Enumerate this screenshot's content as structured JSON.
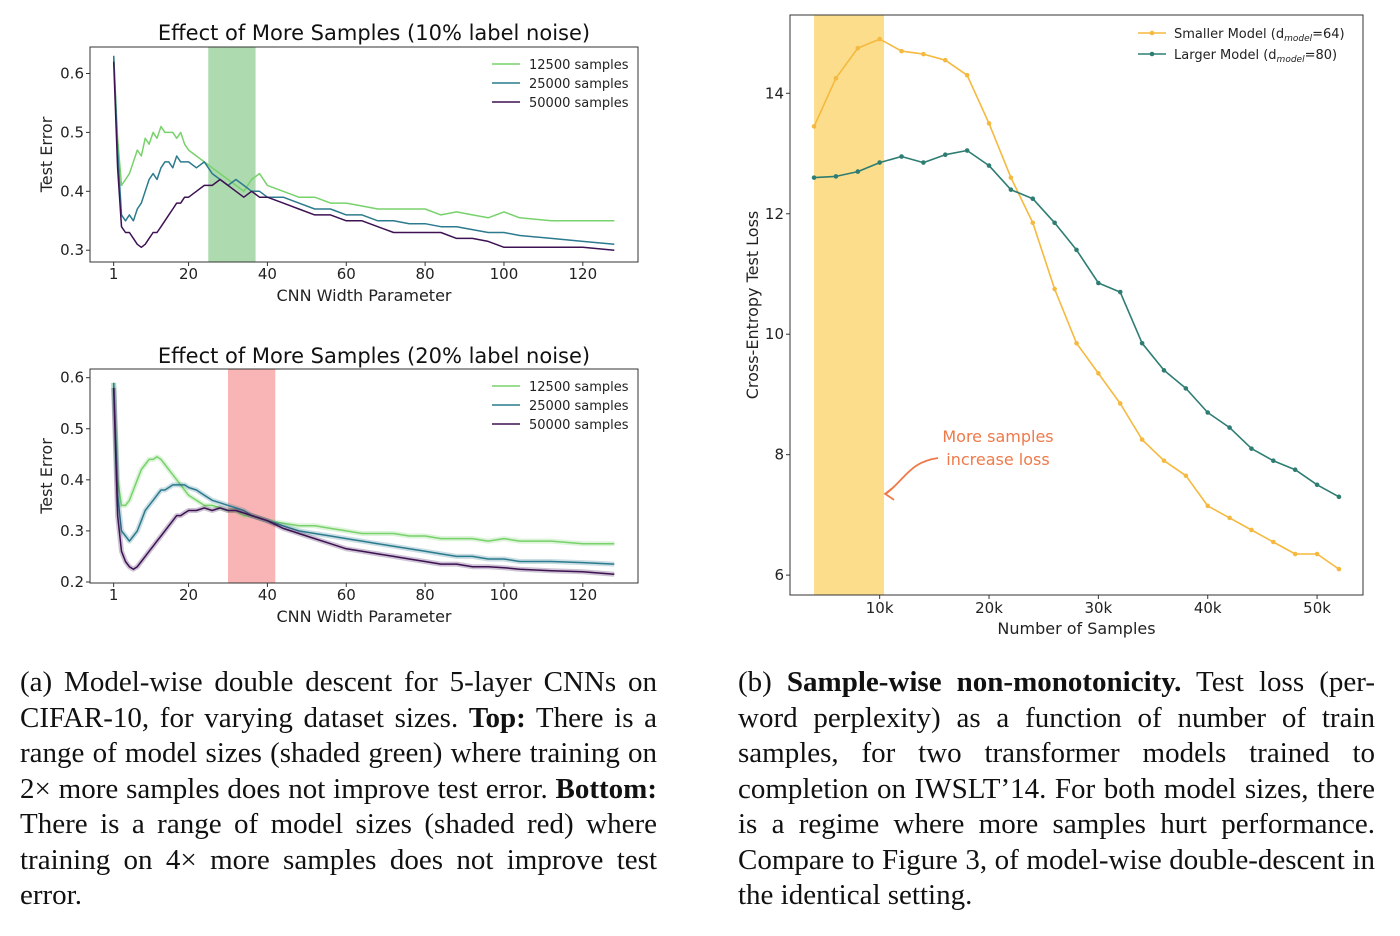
{
  "colors": {
    "light_green": "#78d26b",
    "teal": "#2c7a8e",
    "purple": "#3d1152",
    "orange": "#f5b93f",
    "dark_teal": "#2e7d73",
    "green_band": "#9fd3a0",
    "red_band": "#f8a8a8",
    "yellow_band": "#fbd97e",
    "annotation": "#ee7a4a"
  },
  "chart_data": [
    {
      "id": "top",
      "type": "line",
      "title": "Effect of More Samples (10% label noise)",
      "xlabel": "CNN Width Parameter",
      "ylabel": "Test Error",
      "xlim": [
        -5,
        134
      ],
      "ylim": [
        0.28,
        0.645
      ],
      "xticks": [
        1,
        20,
        40,
        60,
        80,
        100,
        120
      ],
      "yticks": [
        0.3,
        0.4,
        0.5,
        0.6
      ],
      "ytick_labels": [
        "0.3",
        "0.4",
        "0.5",
        "0.6"
      ],
      "legend_position": "top-right",
      "shaded_region": {
        "x": [
          25,
          37
        ],
        "color": "green"
      },
      "series": [
        {
          "name": "12500 samples",
          "color": "light_green",
          "x": [
            1,
            2,
            3,
            4,
            5,
            6,
            7,
            8,
            9,
            10,
            11,
            12,
            13,
            14,
            15,
            16,
            17,
            18,
            19,
            20,
            22,
            24,
            26,
            28,
            30,
            32,
            34,
            36,
            38,
            40,
            44,
            48,
            52,
            56,
            60,
            64,
            68,
            72,
            76,
            80,
            84,
            88,
            92,
            96,
            100,
            104,
            112,
            120,
            128
          ],
          "y": [
            0.63,
            0.49,
            0.41,
            0.42,
            0.43,
            0.45,
            0.47,
            0.46,
            0.49,
            0.48,
            0.5,
            0.49,
            0.51,
            0.5,
            0.5,
            0.5,
            0.49,
            0.5,
            0.48,
            0.47,
            0.46,
            0.45,
            0.44,
            0.43,
            0.42,
            0.41,
            0.4,
            0.42,
            0.43,
            0.41,
            0.4,
            0.39,
            0.39,
            0.38,
            0.38,
            0.375,
            0.37,
            0.37,
            0.37,
            0.37,
            0.36,
            0.365,
            0.36,
            0.355,
            0.365,
            0.355,
            0.35,
            0.35,
            0.35
          ]
        },
        {
          "name": "25000 samples",
          "color": "teal",
          "x": [
            1,
            2,
            3,
            4,
            5,
            6,
            7,
            8,
            9,
            10,
            11,
            12,
            13,
            14,
            15,
            16,
            17,
            18,
            19,
            20,
            22,
            24,
            26,
            28,
            30,
            32,
            34,
            36,
            38,
            40,
            44,
            48,
            52,
            56,
            60,
            64,
            68,
            72,
            76,
            80,
            84,
            88,
            92,
            96,
            100,
            104,
            112,
            120,
            128
          ],
          "y": [
            0.63,
            0.47,
            0.36,
            0.35,
            0.36,
            0.35,
            0.37,
            0.38,
            0.4,
            0.42,
            0.43,
            0.42,
            0.44,
            0.45,
            0.45,
            0.44,
            0.46,
            0.45,
            0.45,
            0.45,
            0.44,
            0.45,
            0.43,
            0.42,
            0.41,
            0.42,
            0.41,
            0.4,
            0.4,
            0.39,
            0.39,
            0.38,
            0.37,
            0.37,
            0.36,
            0.36,
            0.35,
            0.35,
            0.345,
            0.345,
            0.34,
            0.34,
            0.335,
            0.33,
            0.33,
            0.325,
            0.32,
            0.315,
            0.31
          ]
        },
        {
          "name": "50000 samples",
          "color": "purple",
          "x": [
            1,
            2,
            3,
            4,
            5,
            6,
            7,
            8,
            9,
            10,
            11,
            12,
            13,
            14,
            15,
            16,
            17,
            18,
            19,
            20,
            22,
            24,
            26,
            28,
            30,
            32,
            34,
            36,
            38,
            40,
            44,
            48,
            52,
            56,
            60,
            64,
            68,
            72,
            76,
            80,
            84,
            88,
            92,
            96,
            100,
            104,
            112,
            120,
            128
          ],
          "y": [
            0.62,
            0.44,
            0.34,
            0.33,
            0.33,
            0.32,
            0.31,
            0.305,
            0.31,
            0.32,
            0.33,
            0.33,
            0.34,
            0.35,
            0.36,
            0.37,
            0.38,
            0.38,
            0.39,
            0.39,
            0.4,
            0.41,
            0.41,
            0.42,
            0.41,
            0.4,
            0.39,
            0.4,
            0.39,
            0.39,
            0.38,
            0.37,
            0.36,
            0.36,
            0.35,
            0.35,
            0.34,
            0.33,
            0.33,
            0.33,
            0.33,
            0.32,
            0.32,
            0.315,
            0.305,
            0.305,
            0.305,
            0.305,
            0.3
          ]
        }
      ]
    },
    {
      "id": "bottom",
      "type": "line",
      "title": "Effect of More Samples (20% label noise)",
      "xlabel": "CNN Width Parameter",
      "ylabel": "Test Error",
      "xlim": [
        -5,
        134
      ],
      "ylim": [
        0.198,
        0.617
      ],
      "xticks": [
        1,
        20,
        40,
        60,
        80,
        100,
        120
      ],
      "yticks": [
        0.2,
        0.3,
        0.4,
        0.5,
        0.6
      ],
      "ytick_labels": [
        "0.2",
        "0.3",
        "0.4",
        "0.5",
        "0.6"
      ],
      "legend_position": "top-right",
      "shaded_region": {
        "x": [
          30,
          42
        ],
        "color": "red"
      },
      "series": [
        {
          "name": "12500 samples",
          "color": "light_green",
          "x": [
            1,
            2,
            3,
            4,
            5,
            6,
            7,
            8,
            9,
            10,
            11,
            12,
            13,
            14,
            15,
            16,
            17,
            18,
            19,
            20,
            22,
            24,
            26,
            28,
            30,
            32,
            34,
            36,
            38,
            40,
            44,
            48,
            52,
            56,
            60,
            64,
            68,
            72,
            76,
            80,
            84,
            88,
            92,
            96,
            100,
            104,
            112,
            120,
            128
          ],
          "y": [
            0.59,
            0.4,
            0.35,
            0.35,
            0.36,
            0.38,
            0.4,
            0.42,
            0.43,
            0.44,
            0.44,
            0.445,
            0.44,
            0.43,
            0.42,
            0.41,
            0.4,
            0.39,
            0.38,
            0.37,
            0.36,
            0.35,
            0.35,
            0.345,
            0.34,
            0.34,
            0.33,
            0.33,
            0.325,
            0.32,
            0.315,
            0.31,
            0.31,
            0.305,
            0.3,
            0.295,
            0.295,
            0.295,
            0.29,
            0.29,
            0.285,
            0.285,
            0.285,
            0.28,
            0.285,
            0.28,
            0.28,
            0.275,
            0.275
          ]
        },
        {
          "name": "25000 samples",
          "color": "teal",
          "x": [
            1,
            2,
            3,
            4,
            5,
            6,
            7,
            8,
            9,
            10,
            11,
            12,
            13,
            14,
            15,
            16,
            17,
            18,
            19,
            20,
            22,
            24,
            26,
            28,
            30,
            32,
            34,
            36,
            38,
            40,
            44,
            48,
            52,
            56,
            60,
            64,
            68,
            72,
            76,
            80,
            84,
            88,
            92,
            96,
            100,
            104,
            112,
            120,
            128
          ],
          "y": [
            0.59,
            0.37,
            0.3,
            0.29,
            0.28,
            0.29,
            0.3,
            0.32,
            0.34,
            0.35,
            0.36,
            0.37,
            0.38,
            0.38,
            0.385,
            0.39,
            0.39,
            0.39,
            0.39,
            0.385,
            0.38,
            0.37,
            0.36,
            0.355,
            0.35,
            0.345,
            0.34,
            0.33,
            0.325,
            0.32,
            0.31,
            0.3,
            0.295,
            0.29,
            0.285,
            0.28,
            0.275,
            0.27,
            0.265,
            0.26,
            0.255,
            0.25,
            0.25,
            0.245,
            0.245,
            0.24,
            0.24,
            0.238,
            0.235
          ]
        },
        {
          "name": "50000 samples",
          "color": "purple",
          "x": [
            1,
            2,
            3,
            4,
            5,
            6,
            7,
            8,
            9,
            10,
            11,
            12,
            13,
            14,
            15,
            16,
            17,
            18,
            19,
            20,
            22,
            24,
            26,
            28,
            30,
            32,
            34,
            36,
            38,
            40,
            44,
            48,
            52,
            56,
            60,
            64,
            68,
            72,
            76,
            80,
            84,
            88,
            92,
            96,
            100,
            104,
            112,
            120,
            128
          ],
          "y": [
            0.58,
            0.33,
            0.26,
            0.24,
            0.23,
            0.225,
            0.23,
            0.24,
            0.25,
            0.26,
            0.27,
            0.28,
            0.29,
            0.3,
            0.31,
            0.32,
            0.33,
            0.33,
            0.335,
            0.34,
            0.34,
            0.345,
            0.34,
            0.345,
            0.34,
            0.34,
            0.335,
            0.33,
            0.325,
            0.32,
            0.305,
            0.295,
            0.285,
            0.275,
            0.265,
            0.26,
            0.255,
            0.25,
            0.245,
            0.24,
            0.235,
            0.235,
            0.23,
            0.23,
            0.228,
            0.225,
            0.222,
            0.22,
            0.215
          ]
        }
      ]
    },
    {
      "id": "right",
      "type": "line",
      "xlabel": "Number of Samples",
      "ylabel": "Cross-Entropy Test Loss",
      "xlim": [
        1800,
        54200
      ],
      "ylim": [
        5.67,
        15.3
      ],
      "xticks": [
        10000,
        20000,
        30000,
        40000,
        50000
      ],
      "xtick_labels": [
        "10k",
        "20k",
        "30k",
        "40k",
        "50k"
      ],
      "yticks": [
        6,
        8,
        10,
        12,
        14
      ],
      "ytick_labels": [
        "6",
        "8",
        "10",
        "12",
        "14"
      ],
      "legend_position": "top-right",
      "shaded_region": {
        "x": [
          4000,
          10400
        ],
        "color": "yellow"
      },
      "annotation": {
        "lines": [
          "More samples",
          "increase loss"
        ],
        "arrow_to": [
          10400,
          7.35
        ]
      },
      "series": [
        {
          "name": "Smaller Model (d",
          "name_sub": "model",
          "name_end": "=64)",
          "color": "orange",
          "x": [
            4000,
            6000,
            8000,
            10000,
            12000,
            14000,
            16000,
            18000,
            20000,
            22000,
            24000,
            26000,
            28000,
            30000,
            32000,
            34000,
            36000,
            38000,
            40000,
            42000,
            44000,
            46000,
            48000,
            50000,
            52000
          ],
          "y": [
            13.45,
            14.25,
            14.75,
            14.9,
            14.7,
            14.65,
            14.55,
            14.3,
            13.5,
            12.6,
            11.85,
            10.75,
            9.85,
            9.35,
            8.85,
            8.25,
            7.9,
            7.65,
            7.15,
            6.95,
            6.75,
            6.55,
            6.35,
            6.35,
            6.1
          ]
        },
        {
          "name": "Larger  Model (d",
          "name_sub": "model",
          "name_end": "=80)",
          "color": "dark_teal",
          "x": [
            4000,
            6000,
            8000,
            10000,
            12000,
            14000,
            16000,
            18000,
            20000,
            22000,
            24000,
            26000,
            28000,
            30000,
            32000,
            34000,
            36000,
            38000,
            40000,
            42000,
            44000,
            46000,
            48000,
            50000,
            52000
          ],
          "y": [
            12.6,
            12.62,
            12.7,
            12.85,
            12.95,
            12.85,
            12.98,
            13.05,
            12.8,
            12.4,
            12.25,
            11.85,
            11.4,
            10.85,
            10.7,
            9.85,
            9.4,
            9.1,
            8.7,
            8.45,
            8.1,
            7.9,
            7.75,
            7.5,
            7.3
          ]
        }
      ]
    }
  ],
  "captions": {
    "a": {
      "prefix": "(a) Model-wise double descent for 5-layer CNNs on CIFAR-10, for varying dataset sizes. ",
      "top_bold": "Top:",
      "top_text": " There is a range of model sizes (shaded green) where training on 2× more samples does not improve test error. ",
      "bottom_bold": "Bottom:",
      "bottom_text": " There is a range of model sizes (shaded red) where training on 4× more samples does not improve test error."
    },
    "b": {
      "prefix": "(b) ",
      "bold": "Sample-wise non-monotonicity.",
      "text": " Test loss (per-word perplexity) as a function of number of train samples, for two transformer models trained to completion on IWSLT’14. For both model sizes, there is a regime where more samples hurt performance. Compare to Figure 3, of model-wise double-descent in the identical setting."
    }
  }
}
